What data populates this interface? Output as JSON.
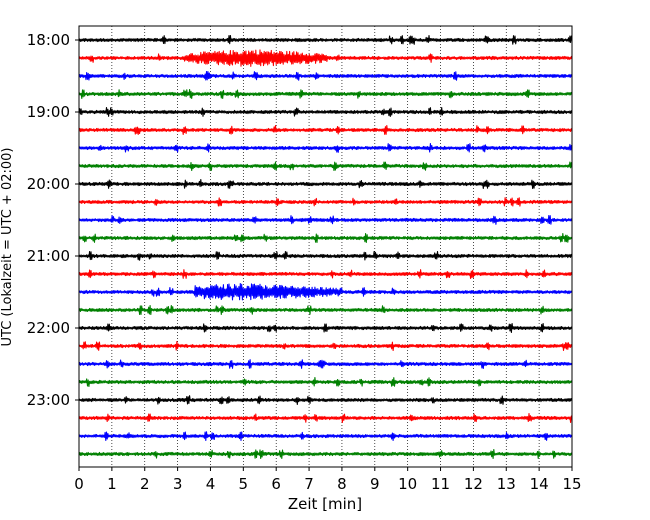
{
  "chart_data": {
    "type": "line",
    "title": "",
    "xlabel": "Zeit  [min]",
    "ylabel": "UTC (Lokalzeit = UTC + 02:00)",
    "xlim": [
      0,
      15
    ],
    "x_ticks": [
      "0",
      "1",
      "2",
      "3",
      "4",
      "5",
      "6",
      "7",
      "8",
      "9",
      "10",
      "11",
      "12",
      "13",
      "14",
      "15"
    ],
    "y_tick_labels": [
      "18:00",
      "19:00",
      "20:00",
      "21:00",
      "22:00",
      "23:00"
    ],
    "grid": "vertical dotted lines at each minute",
    "trace_interval_minutes": 15,
    "trace_color_cycle": [
      "#000000",
      "#ff0000",
      "#0000ff",
      "#008000"
    ],
    "traces": [
      {
        "start": "18:00",
        "color": "#000000"
      },
      {
        "start": "18:15",
        "color": "#ff0000"
      },
      {
        "start": "18:30",
        "color": "#0000ff"
      },
      {
        "start": "18:45",
        "color": "#008000"
      },
      {
        "start": "19:00",
        "color": "#000000"
      },
      {
        "start": "19:15",
        "color": "#ff0000"
      },
      {
        "start": "19:30",
        "color": "#0000ff"
      },
      {
        "start": "19:45",
        "color": "#008000"
      },
      {
        "start": "20:00",
        "color": "#000000"
      },
      {
        "start": "20:15",
        "color": "#ff0000"
      },
      {
        "start": "20:30",
        "color": "#0000ff"
      },
      {
        "start": "20:45",
        "color": "#008000"
      },
      {
        "start": "21:00",
        "color": "#000000"
      },
      {
        "start": "21:15",
        "color": "#ff0000"
      },
      {
        "start": "21:30",
        "color": "#0000ff"
      },
      {
        "start": "21:45",
        "color": "#008000"
      },
      {
        "start": "22:00",
        "color": "#000000"
      },
      {
        "start": "22:15",
        "color": "#ff0000"
      },
      {
        "start": "22:30",
        "color": "#0000ff"
      },
      {
        "start": "22:45",
        "color": "#008000"
      },
      {
        "start": "23:00",
        "color": "#000000"
      },
      {
        "start": "23:15",
        "color": "#ff0000"
      },
      {
        "start": "23:30",
        "color": "#0000ff"
      },
      {
        "start": "23:45",
        "color": "#008000"
      }
    ],
    "notable_events": [
      {
        "trace": "18:15",
        "from_min": 3.2,
        "to_min": 7.5,
        "peak_min": 5.3
      },
      {
        "trace": "21:30",
        "from_min": 3.5,
        "to_min": 8.0,
        "peak_min": 5.0
      }
    ]
  }
}
